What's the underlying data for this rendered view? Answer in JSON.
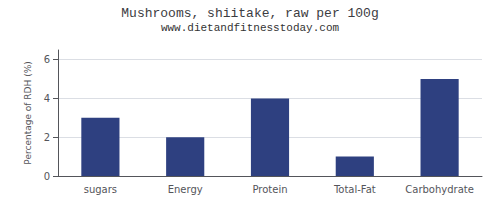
{
  "chart_data": {
    "type": "bar",
    "title": "Mushrooms, shiitake, raw per 100g",
    "subtitle": "www.dietandfitnesstoday.com",
    "categories": [
      "sugars",
      "Energy",
      "Protein",
      "Total-Fat",
      "Carbohydrate"
    ],
    "values": [
      3.0,
      2.0,
      4.0,
      1.0,
      5.0
    ],
    "color": "#2e4080",
    "ylabel": "Percentage of RDH (%)",
    "ylim": [
      0,
      6.5
    ],
    "yticks": [
      0,
      2,
      4,
      6
    ],
    "grid": true
  }
}
